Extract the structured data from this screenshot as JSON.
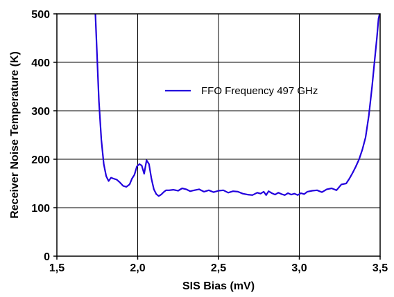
{
  "chart_data": {
    "type": "line",
    "title": "",
    "xlabel": "SIS Bias (mV)",
    "ylabel": "Receiver Noise Temperature (K)",
    "xlim": [
      1.5,
      3.5
    ],
    "ylim": [
      0,
      500
    ],
    "x_ticks": [
      1.5,
      2.0,
      2.5,
      3.0,
      3.5
    ],
    "x_tick_labels": [
      "1,5",
      "2,0",
      "2,5",
      "3,0",
      "3,5"
    ],
    "y_ticks": [
      0,
      100,
      200,
      300,
      400,
      500
    ],
    "y_tick_labels": [
      "0",
      "100",
      "200",
      "300",
      "400",
      "500"
    ],
    "grid": true,
    "legend_position": "upper-center",
    "series": [
      {
        "name": "FFO Frequency 497 GHz",
        "color": "#2200dd",
        "x": [
          1.738,
          1.76,
          1.775,
          1.79,
          1.805,
          1.82,
          1.835,
          1.85,
          1.87,
          1.89,
          1.91,
          1.93,
          1.95,
          1.965,
          1.98,
          1.995,
          2.01,
          2.025,
          2.04,
          2.055,
          2.07,
          2.085,
          2.1,
          2.115,
          2.13,
          2.145,
          2.16,
          2.175,
          2.195,
          2.22,
          2.25,
          2.275,
          2.3,
          2.325,
          2.35,
          2.38,
          2.41,
          2.44,
          2.47,
          2.5,
          2.53,
          2.56,
          2.59,
          2.62,
          2.65,
          2.68,
          2.71,
          2.74,
          2.76,
          2.78,
          2.795,
          2.81,
          2.83,
          2.85,
          2.87,
          2.89,
          2.91,
          2.93,
          2.95,
          2.97,
          2.99,
          3.01,
          3.03,
          3.05,
          3.08,
          3.11,
          3.14,
          3.17,
          3.2,
          3.23,
          3.26,
          3.29,
          3.31,
          3.33,
          3.35,
          3.37,
          3.39,
          3.41,
          3.43,
          3.45,
          3.465,
          3.48,
          3.49,
          3.497
        ],
        "y": [
          500,
          320,
          240,
          190,
          165,
          155,
          162,
          160,
          158,
          152,
          145,
          143,
          148,
          160,
          168,
          185,
          190,
          187,
          170,
          198,
          190,
          160,
          138,
          128,
          124,
          127,
          132,
          136,
          136,
          137,
          135,
          140,
          138,
          134,
          136,
          138,
          133,
          136,
          132,
          135,
          136,
          131,
          134,
          133,
          129,
          127,
          126,
          131,
          129,
          133,
          126,
          134,
          130,
          127,
          131,
          128,
          126,
          130,
          127,
          129,
          126,
          130,
          128,
          133,
          135,
          136,
          132,
          138,
          140,
          136,
          148,
          150,
          160,
          172,
          185,
          200,
          220,
          245,
          290,
          350,
          400,
          450,
          490,
          500
        ]
      }
    ]
  }
}
